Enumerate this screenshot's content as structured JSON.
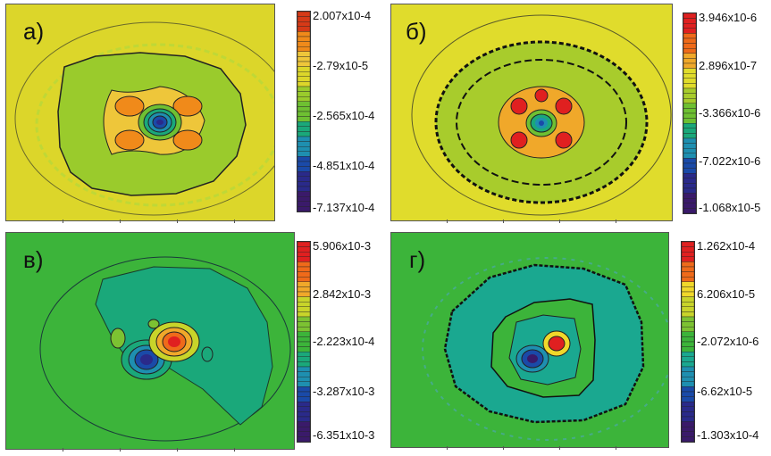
{
  "panels": [
    {
      "letter": "а)",
      "colorbar_labels": [
        "2.007x10-4",
        "-2.79x10-5",
        "-2.565x10-4",
        "-4.851x10-4",
        "-7.137x10-4"
      ],
      "background": "#dcd62a",
      "colors": [
        "#d63a17",
        "#f08a1a",
        "#eec63a",
        "#dcd62a",
        "#9acb2c",
        "#6ec032",
        "#1aa87a",
        "#1e8fb0",
        "#1a4aa8",
        "#2a2a8a",
        "#3a1a6a"
      ]
    },
    {
      "letter": "б)",
      "colorbar_labels": [
        "3.946x10-6",
        "2.896x10-7",
        "-3.366x10-6",
        "-7.022x10-6",
        "-1.068x10-5"
      ],
      "background": "#e0dc2c",
      "colors": [
        "#e02020",
        "#ef6a1a",
        "#f0a82a",
        "#e0dc2c",
        "#a8cc2c",
        "#6ec032",
        "#1aa87a",
        "#1e8fb0",
        "#1a4aa8",
        "#2a2a8a",
        "#3a1a6a"
      ]
    },
    {
      "letter": "в)",
      "colorbar_labels": [
        "5.906x10-3",
        "2.842x10-3",
        "-2.223x10-4",
        "-3.287x10-3",
        "-6.351x10-3"
      ],
      "background": "#3cb43a",
      "colors": [
        "#e02020",
        "#ef6a1a",
        "#f0a82a",
        "#c8d42a",
        "#7cc232",
        "#3cb43a",
        "#1aa87a",
        "#1e8fb0",
        "#1a4aa8",
        "#2a2a8a",
        "#3a1a6a"
      ]
    },
    {
      "letter": "г)",
      "colorbar_labels": [
        "1.262x10-4",
        "6.206x10-5",
        "-2.072x10-6",
        "-6.62x10-5",
        "-1.303x10-4"
      ],
      "background": "#3cb43a",
      "colors": [
        "#e02020",
        "#ef6a1a",
        "#f0d82a",
        "#c8d42a",
        "#7cc232",
        "#3cb43a",
        "#1aa890",
        "#1e8fb0",
        "#1a4aa8",
        "#2a2a8a",
        "#3a1a6a"
      ]
    }
  ],
  "chart_data": [
    {
      "type": "heatmap",
      "panel": "а)",
      "colorbar_ticks": [
        0.0002007,
        -2.79e-05,
        -0.0002565,
        -0.0004851,
        -0.0007137
      ],
      "colorbar_range": [
        -0.0007137,
        0.0002007
      ]
    },
    {
      "type": "heatmap",
      "panel": "б)",
      "colorbar_ticks": [
        3.946e-06,
        2.896e-07,
        -3.366e-06,
        -7.022e-06,
        -1.068e-05
      ],
      "colorbar_range": [
        -1.068e-05,
        3.946e-06
      ]
    },
    {
      "type": "heatmap",
      "panel": "в)",
      "colorbar_ticks": [
        0.005906,
        0.002842,
        -0.0002223,
        -0.003287,
        -0.006351
      ],
      "colorbar_range": [
        -0.006351,
        0.005906
      ]
    },
    {
      "type": "heatmap",
      "panel": "г)",
      "colorbar_ticks": [
        0.0001262,
        6.206e-05,
        -2.072e-06,
        -6.62e-05,
        -0.0001303
      ],
      "colorbar_range": [
        -0.0001303,
        0.0001262
      ]
    }
  ]
}
